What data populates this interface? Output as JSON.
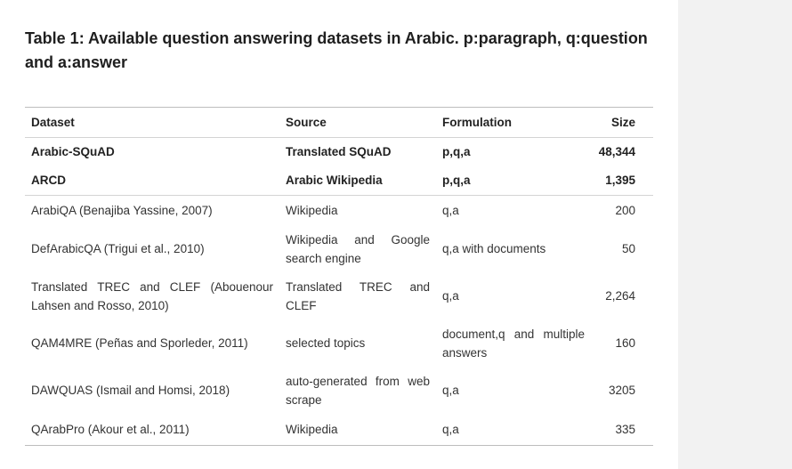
{
  "caption": "Table 1: Available question answering datasets in Arabic. p:paragraph, q:question and a:answer",
  "table": {
    "headers": [
      "Dataset",
      "Source",
      "Formulation",
      "Size"
    ],
    "rows": [
      {
        "dataset": "Arabic-SQuAD",
        "source": "Translated SQuAD",
        "formulation": "p,q,a",
        "size": "48,344"
      },
      {
        "dataset": "ARCD",
        "source": "Arabic Wikipedia",
        "formulation": "p,q,a",
        "size": "1,395"
      },
      {
        "dataset": "ArabiQA (Benajiba Yassine, 2007)",
        "source": "Wikipedia",
        "formulation": "q,a",
        "size": "200"
      },
      {
        "dataset": "DefArabicQA (Trigui et al., 2010)",
        "source": "Wikipedia and Google search engine",
        "formulation": "q,a with documents",
        "size": "50"
      },
      {
        "dataset": "Translated TREC and CLEF (Abouenour Lahsen and Rosso, 2010)",
        "source": "Translated TREC and CLEF",
        "formulation": "q,a",
        "size": "2,264"
      },
      {
        "dataset": "QAM4MRE (Peñas and Sporleder, 2011)",
        "source": "selected topics",
        "formulation": "document,q and multiple answers",
        "size": "160"
      },
      {
        "dataset": "DAWQUAS (Ismail and Homsi, 2018)",
        "source": "auto-generated from web scrape",
        "formulation": "q,a",
        "size": "3205"
      },
      {
        "dataset": "QArabPro (Akour et al., 2011)",
        "source": "Wikipedia",
        "formulation": "q,a",
        "size": "335"
      }
    ]
  }
}
